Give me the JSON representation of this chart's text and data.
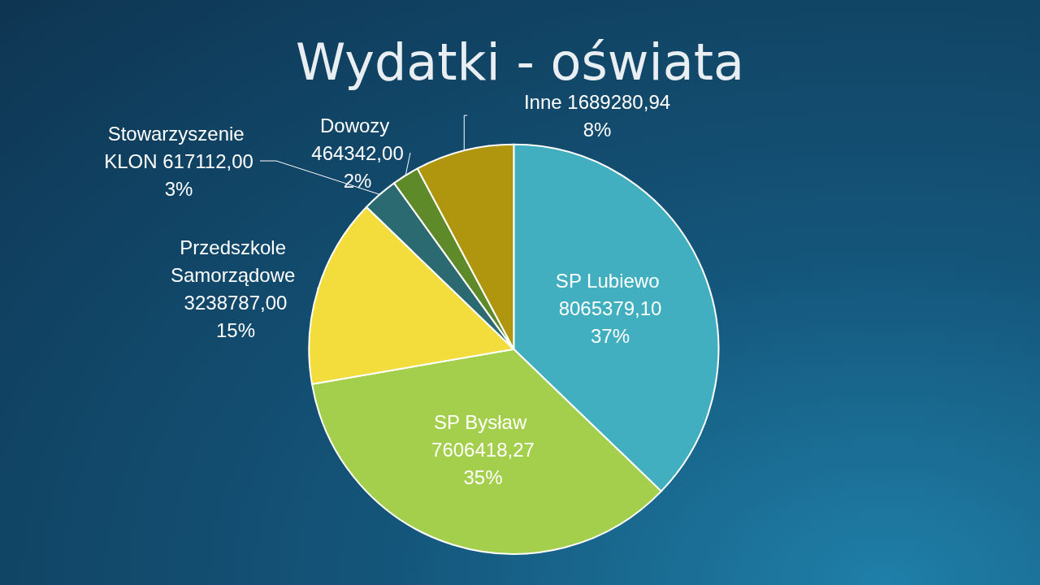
{
  "chart_data": {
    "type": "pie",
    "title": "Wydatki - oświata",
    "categories": [
      "SP Lubiewo",
      "SP Bysław",
      "Przedszkole Samorządowe",
      "Stowarzyszenie KLON",
      "Dowozy",
      "Inne"
    ],
    "values": [
      8065379.1,
      7606418.27,
      3238787.0,
      617112.0,
      464342.0,
      1689280.94
    ],
    "value_labels": [
      "8065379,10\n37%",
      "7606418,27\n35%",
      "3238787,00\n15%",
      "617112,00\n3%",
      "464342,00\n2%",
      "1689280,94\n8%"
    ],
    "colors": [
      "#41afbf",
      "#a4cf4c",
      "#f3dd3c",
      "#2b6a70",
      "#5f8a2a",
      "#b0960e"
    ]
  }
}
